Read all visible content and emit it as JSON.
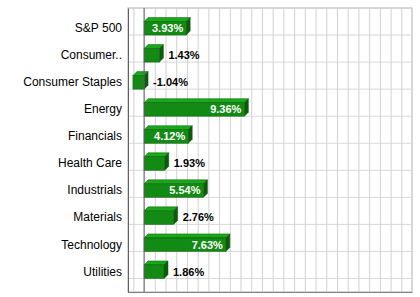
{
  "chart_data": {
    "type": "bar",
    "orientation": "horizontal",
    "categories": [
      "S&P 500",
      "Consumer..",
      "Consumer Staples",
      "Energy",
      "Financials",
      "Health Care",
      "Industrials",
      "Materials",
      "Technology",
      "Utilities"
    ],
    "values": [
      3.93,
      1.43,
      -1.04,
      9.36,
      4.12,
      1.93,
      5.54,
      2.76,
      7.63,
      1.86
    ],
    "value_labels": [
      "3.93%",
      "1.43%",
      "-1.04%",
      "9.36%",
      "4.12%",
      "1.93%",
      "5.54%",
      "2.76%",
      "7.63%",
      "1.86%"
    ],
    "color": "#138a13",
    "xlim": [
      -1.5,
      25
    ],
    "xticks": [
      -1,
      0,
      1,
      2,
      3,
      4,
      5,
      6,
      7,
      8,
      9,
      10,
      11,
      12,
      13,
      14,
      15,
      16,
      17,
      18,
      19,
      20,
      21,
      22,
      23,
      24
    ],
    "grid": true,
    "data_labels": true,
    "tick_labels": "y"
  }
}
